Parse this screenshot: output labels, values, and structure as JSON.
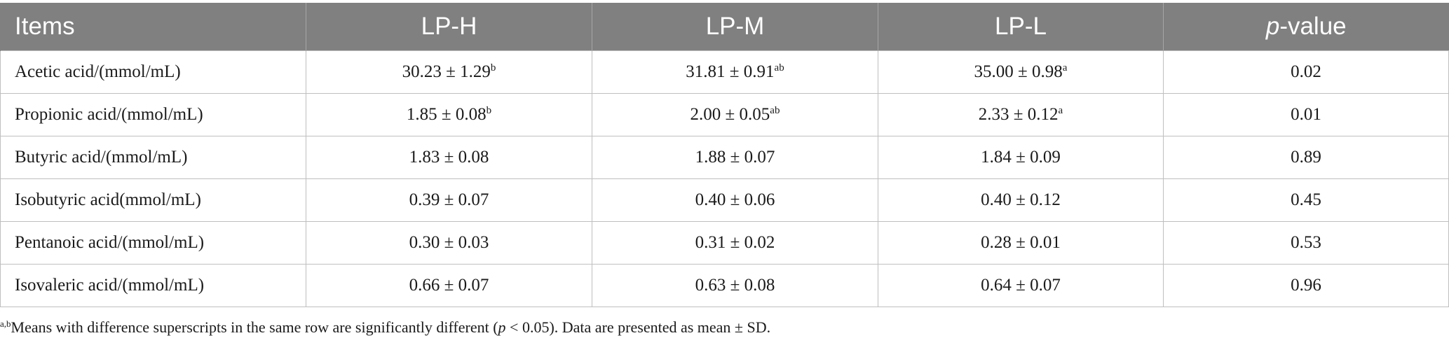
{
  "table": {
    "headers": {
      "items": "Items",
      "lp_h": "LP-H",
      "lp_m": "LP-M",
      "lp_l": "LP-L",
      "p_letter": "p",
      "p_rest": "-value"
    },
    "rows": [
      {
        "item": "Acetic acid/(mmol/mL)",
        "lp_h": "30.23 ± 1.29",
        "lp_h_sup": "b",
        "lp_m": "31.81 ± 0.91",
        "lp_m_sup": "ab",
        "lp_l": "35.00 ± 0.98",
        "lp_l_sup": "a",
        "p": "0.02"
      },
      {
        "item": "Propionic acid/(mmol/mL)",
        "lp_h": "1.85 ± 0.08",
        "lp_h_sup": "b",
        "lp_m": "2.00 ± 0.05",
        "lp_m_sup": "ab",
        "lp_l": "2.33 ± 0.12",
        "lp_l_sup": "a",
        "p": "0.01"
      },
      {
        "item": "Butyric acid/(mmol/mL)",
        "lp_h": "1.83 ± 0.08",
        "lp_h_sup": "",
        "lp_m": "1.88 ± 0.07",
        "lp_m_sup": "",
        "lp_l": "1.84 ± 0.09",
        "lp_l_sup": "",
        "p": "0.89"
      },
      {
        "item": "Isobutyric acid(mmol/mL)",
        "lp_h": "0.39 ± 0.07",
        "lp_h_sup": "",
        "lp_m": "0.40 ± 0.06",
        "lp_m_sup": "",
        "lp_l": "0.40 ± 0.12",
        "lp_l_sup": "",
        "p": "0.45"
      },
      {
        "item": "Pentanoic acid/(mmol/mL)",
        "lp_h": "0.30 ± 0.03",
        "lp_h_sup": "",
        "lp_m": "0.31 ± 0.02",
        "lp_m_sup": "",
        "lp_l": "0.28 ± 0.01",
        "lp_l_sup": "",
        "p": "0.53"
      },
      {
        "item": "Isovaleric acid/(mmol/mL)",
        "lp_h": "0.66 ± 0.07",
        "lp_h_sup": "",
        "lp_m": "0.63 ± 0.08",
        "lp_m_sup": "",
        "lp_l": "0.64 ± 0.07",
        "lp_l_sup": "",
        "p": "0.96"
      }
    ]
  },
  "footnote": {
    "sup": "a,b",
    "text_before": "Means with difference superscripts in the same row are significantly different (",
    "p_letter": "p",
    "text_after": " < 0.05). Data are presented as mean ± SD."
  }
}
